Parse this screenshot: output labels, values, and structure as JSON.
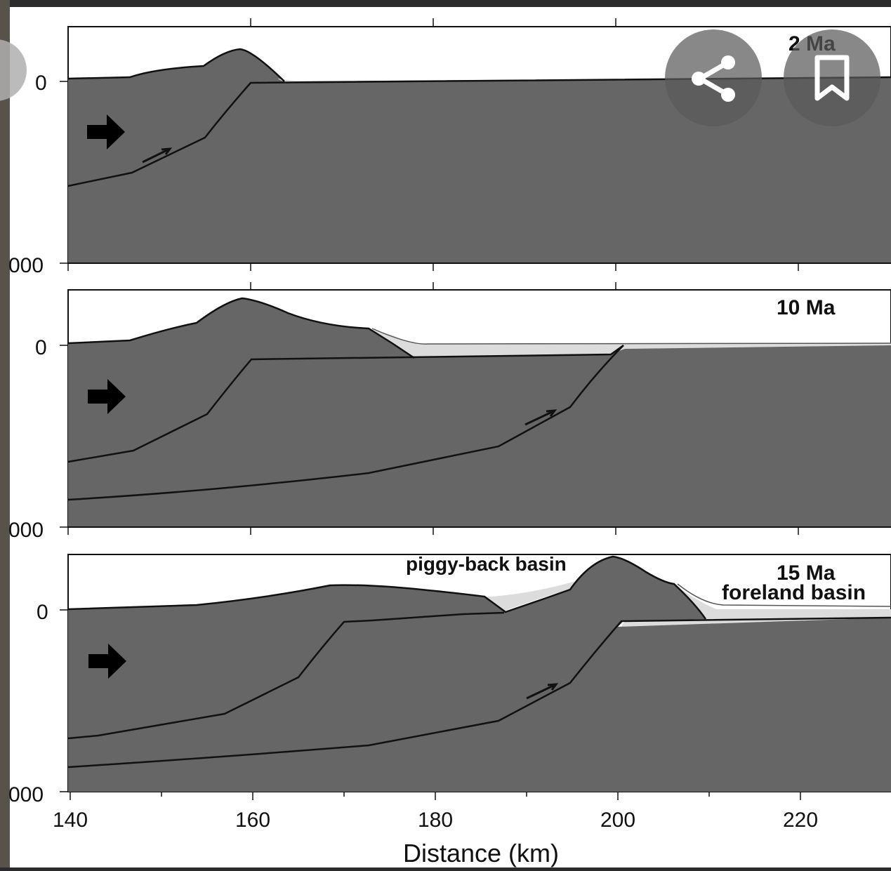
{
  "figure": {
    "panels": [
      {
        "id": "panel-2ma",
        "age_label": "2 Ma",
        "depth_top_label": "0",
        "depth_bottom_label": "000"
      },
      {
        "id": "panel-10ma",
        "age_label": "10 Ma",
        "depth_top_label": "0",
        "depth_bottom_label": "000"
      },
      {
        "id": "panel-15ma",
        "age_label": "15 Ma",
        "depth_top_label": "0",
        "depth_bottom_label": "000",
        "annotations": {
          "piggyback": "piggy-back basin",
          "foreland": "foreland basin"
        }
      }
    ],
    "x_axis": {
      "label": "Distance (km)",
      "ticks": [
        "140",
        "160",
        "180",
        "200",
        "220"
      ]
    }
  },
  "overlay": {
    "share_icon": "share-icon",
    "bookmark_icon": "bookmark-icon"
  },
  "colors": {
    "background": "#2b2b2b",
    "paper": "#ffffff",
    "rock": "#666666",
    "sediment": "#dcdcdc",
    "line": "#111111",
    "left_strip": "#57524a"
  }
}
